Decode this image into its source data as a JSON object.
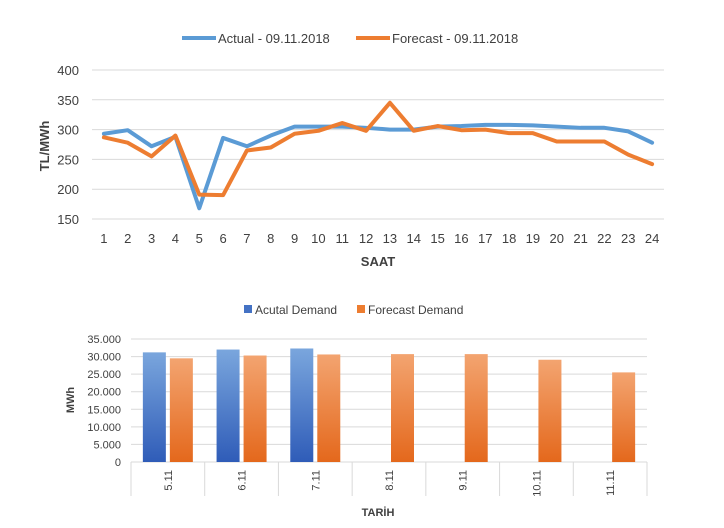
{
  "chart_data": [
    {
      "type": "line",
      "title": "",
      "xlabel": "SAAT",
      "ylabel": "TL/MWh",
      "x": [
        "1",
        "2",
        "3",
        "4",
        "5",
        "6",
        "7",
        "8",
        "9",
        "10",
        "11",
        "12",
        "13",
        "14",
        "15",
        "16",
        "17",
        "18",
        "19",
        "20",
        "21",
        "22",
        "23",
        "24"
      ],
      "ylim": [
        150,
        400
      ],
      "yticks": [
        150,
        200,
        250,
        300,
        350,
        400
      ],
      "ytick_labels": [
        "150",
        "200",
        "250",
        "300",
        "350",
        "400"
      ],
      "grid": true,
      "legend": "top-center",
      "series": [
        {
          "name": "Actual - 09.11.2018",
          "color": "#5b9bd5",
          "values": [
            293,
            299,
            272,
            288,
            168,
            286,
            272,
            290,
            305,
            305,
            305,
            303,
            300,
            300,
            305,
            306,
            308,
            308,
            307,
            305,
            303,
            303,
            297,
            278
          ]
        },
        {
          "name": "Forecast - 09.11.2018",
          "color": "#ed7d31",
          "values": [
            287,
            278,
            255,
            290,
            191,
            190,
            265,
            270,
            293,
            298,
            311,
            298,
            345,
            298,
            306,
            299,
            300,
            294,
            294,
            280,
            280,
            280,
            258,
            242
          ]
        }
      ]
    },
    {
      "type": "bar",
      "title": "",
      "xlabel": "TARİH",
      "ylabel": "MWh",
      "categories": [
        "5.11",
        "6.11",
        "7.11",
        "8.11",
        "9.11",
        "10.11",
        "11.11"
      ],
      "ylim": [
        0,
        35000
      ],
      "yticks": [
        0,
        5000,
        10000,
        15000,
        20000,
        25000,
        30000,
        35000
      ],
      "ytick_labels": [
        "0",
        "5.000",
        "10.000",
        "15.000",
        "20.000",
        "25.000",
        "30.000",
        "35.000"
      ],
      "grid": true,
      "legend": "top-center",
      "series": [
        {
          "name": "Acutal Demand",
          "color": "#4472c4",
          "values": [
            31200,
            32000,
            32300,
            null,
            null,
            null,
            null
          ]
        },
        {
          "name": "Forecast Demand",
          "color": "#ed7d31",
          "values": [
            29500,
            30300,
            30600,
            30700,
            30700,
            29100,
            25500
          ]
        }
      ]
    }
  ]
}
